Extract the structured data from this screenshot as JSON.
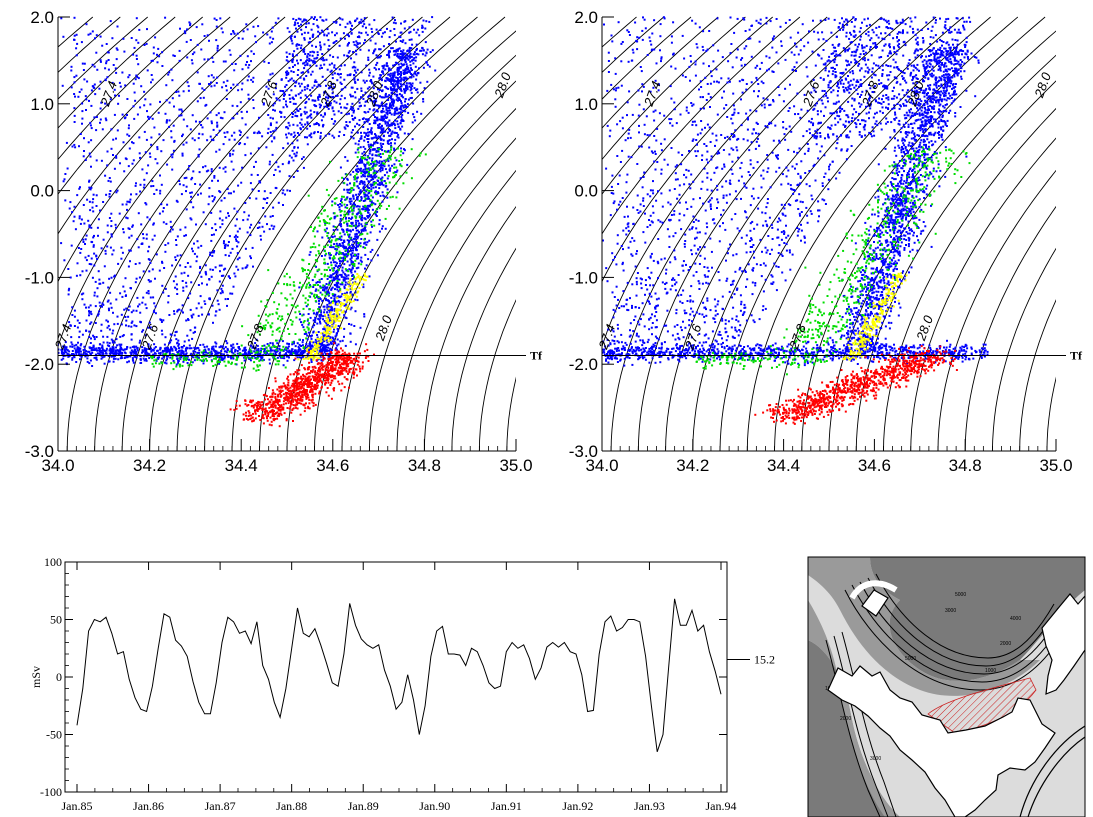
{
  "chart_data": [
    {
      "type": "scatter",
      "panel": "ts-left",
      "title": "",
      "xlabel": "",
      "ylabel": "",
      "xlim": [
        34.0,
        35.0
      ],
      "ylim": [
        -3.0,
        2.0
      ],
      "x_ticks": [
        "34.0",
        "34.2",
        "34.4",
        "34.6",
        "34.8",
        "35.0"
      ],
      "y_ticks": [
        "2.0",
        "1.0",
        "0.0",
        "-1.0",
        "-2.0",
        "-3.0"
      ],
      "freezing_line_label": "Tf",
      "freezing_temperature": -1.9,
      "isopycnal_labels": [
        {
          "text": "27.4",
          "x": 34.12,
          "y": 1.1
        },
        {
          "text": "27.6",
          "x": 34.47,
          "y": 1.1
        },
        {
          "text": "27.8",
          "x": 34.6,
          "y": 1.1
        },
        {
          "text": "28.0",
          "x": 34.7,
          "y": 1.1
        },
        {
          "text": "28.0",
          "x": 34.98,
          "y": 1.2
        },
        {
          "text": "27.4",
          "x": 34.02,
          "y": -1.7
        },
        {
          "text": "27.6",
          "x": 34.21,
          "y": -1.7
        },
        {
          "text": "27.8",
          "x": 34.44,
          "y": -1.7
        },
        {
          "text": "28.0",
          "x": 34.72,
          "y": -1.6
        }
      ],
      "series": [
        {
          "color": "#0000ff",
          "marker": "dots"
        },
        {
          "color": "#00dd00",
          "marker": "dots"
        },
        {
          "color": "#ffff00",
          "marker": "dots"
        },
        {
          "color": "#ff0000",
          "marker": "dots"
        }
      ]
    },
    {
      "type": "scatter",
      "panel": "ts-right",
      "title": "",
      "xlabel": "",
      "ylabel": "",
      "xlim": [
        34.0,
        35.0
      ],
      "ylim": [
        -3.0,
        2.0
      ],
      "x_ticks": [
        "34.0",
        "34.2",
        "34.4",
        "34.6",
        "34.8",
        "35.0"
      ],
      "y_ticks": [
        "2.0",
        "1.0",
        "0.0",
        "-1.0",
        "-2.0",
        "-3.0"
      ],
      "freezing_line_label": "Tf",
      "freezing_temperature": -1.9,
      "isopycnal_labels": [
        {
          "text": "27.4",
          "x": 34.12,
          "y": 1.1
        },
        {
          "text": "27.6",
          "x": 34.47,
          "y": 1.1
        },
        {
          "text": "27.8",
          "x": 34.6,
          "y": 1.1
        },
        {
          "text": "28.0",
          "x": 34.7,
          "y": 1.1
        },
        {
          "text": "28.0",
          "x": 34.98,
          "y": 1.2
        },
        {
          "text": "27.4",
          "x": 34.02,
          "y": -1.7
        },
        {
          "text": "27.6",
          "x": 34.21,
          "y": -1.7
        },
        {
          "text": "27.8",
          "x": 34.44,
          "y": -1.7
        },
        {
          "text": "28.0",
          "x": 34.72,
          "y": -1.6
        }
      ],
      "series": [
        {
          "color": "#0000ff",
          "marker": "dots"
        },
        {
          "color": "#00dd00",
          "marker": "dots"
        },
        {
          "color": "#ffff00",
          "marker": "dots"
        },
        {
          "color": "#ff0000",
          "marker": "dots"
        }
      ]
    },
    {
      "type": "line",
      "panel": "transport",
      "title": "",
      "xlabel": "",
      "ylabel": "mSv",
      "ylim": [
        -100,
        100
      ],
      "y_ticks": [
        "100",
        "50",
        "0",
        "-50",
        "-100"
      ],
      "x_ticks": [
        "Jan.85",
        "Jan.86",
        "Jan.87",
        "Jan.88",
        "Jan.89",
        "Jan.90",
        "Jan.91",
        "Jan.92",
        "Jan.93",
        "Jan.94"
      ],
      "mean_label": "15.2",
      "mean_value": 15.2,
      "x_start_year": 1985,
      "x_end_year": 1994,
      "series": [
        {
          "color": "#000000",
          "values": [
            -42,
            -10,
            40,
            50,
            48,
            52,
            38,
            20,
            22,
            -2,
            -18,
            -28,
            -30,
            -8,
            25,
            55,
            52,
            32,
            27,
            18,
            -4,
            -22,
            -32,
            -32,
            -5,
            30,
            52,
            48,
            38,
            40,
            29,
            48,
            10,
            -2,
            -22,
            -35,
            -10,
            25,
            60,
            38,
            35,
            42,
            28,
            12,
            -5,
            -8,
            20,
            64,
            45,
            33,
            28,
            25,
            28,
            6,
            -8,
            -28,
            -22,
            2,
            -20,
            -50,
            -25,
            18,
            40,
            44,
            20,
            20,
            19,
            10,
            25,
            22,
            10,
            -5,
            -10,
            -8,
            22,
            30,
            25,
            28,
            16,
            -2,
            8,
            26,
            30,
            26,
            30,
            22,
            20,
            2,
            -30,
            -29,
            20,
            48,
            53,
            40,
            43,
            50,
            50,
            48,
            18,
            -25,
            -65,
            -50,
            10,
            68,
            45,
            45,
            58,
            40,
            45,
            22,
            5,
            -15
          ]
        }
      ]
    }
  ],
  "map": {
    "contour_labels": [
      "1000",
      "2000",
      "3000",
      "4000",
      "5000"
    ]
  }
}
